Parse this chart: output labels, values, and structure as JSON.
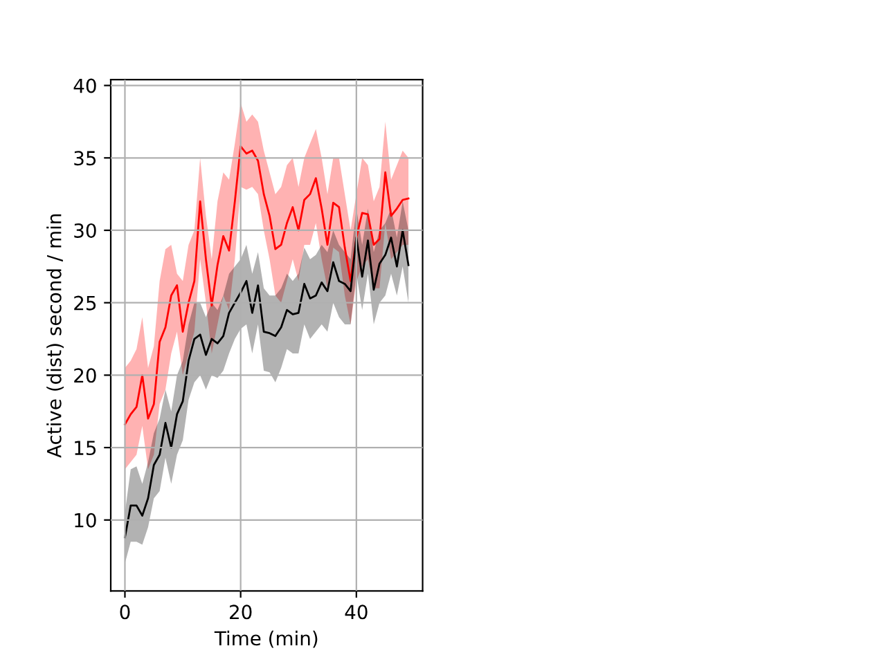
{
  "chart_data": {
    "type": "line",
    "xlabel": "Time (min)",
    "ylabel": "Active (dist) second / min",
    "x": [
      0,
      1,
      2,
      3,
      4,
      5,
      6,
      7,
      8,
      9,
      10,
      11,
      12,
      13,
      14,
      15,
      16,
      17,
      18,
      19,
      20,
      21,
      22,
      23,
      24,
      25,
      26,
      27,
      28,
      29,
      30,
      31,
      32,
      33,
      34,
      35,
      36,
      37,
      38,
      39,
      40,
      41,
      42,
      43,
      44,
      45,
      46,
      47,
      48,
      49
    ],
    "series": [
      {
        "color": "#ff0000",
        "values": [
          16.6,
          17.3,
          17.8,
          20.0,
          17.0,
          18.0,
          22.3,
          23.3,
          25.5,
          26.2,
          23.0,
          25.0,
          26.5,
          32.0,
          28.0,
          24.8,
          27.6,
          29.6,
          28.6,
          32.0,
          35.8,
          35.3,
          35.5,
          34.8,
          32.5,
          31.0,
          28.7,
          29.0,
          30.5,
          31.6,
          30.0,
          32.1,
          32.5,
          33.6,
          31.5,
          29.0,
          31.9,
          31.6,
          28.8,
          26.5,
          29.5,
          31.2,
          31.1,
          29.0,
          29.4,
          34.0,
          31.0,
          31.5,
          32.1,
          32.2
        ],
        "upper": [
          20.5,
          21,
          21.8,
          24,
          20.5,
          22,
          26.5,
          28.7,
          29,
          27,
          26.5,
          29,
          30,
          35,
          31,
          28,
          32,
          34,
          33.5,
          36,
          38.8,
          37.5,
          38,
          37.5,
          35.5,
          34,
          32.5,
          33,
          34.5,
          35,
          33,
          35,
          36,
          37,
          35,
          32.5,
          35,
          35,
          32.5,
          30,
          32.5,
          35,
          34.5,
          32,
          33,
          37.5,
          33.5,
          34.5,
          35.5,
          35
        ],
        "lower": [
          13.5,
          14,
          14.5,
          16.5,
          13.5,
          14.5,
          18,
          19,
          21.5,
          23,
          20,
          21.5,
          23,
          28,
          25,
          21.5,
          23.5,
          25.5,
          24.5,
          28,
          33,
          32.8,
          33,
          32.5,
          30,
          28,
          25.5,
          25,
          26.5,
          28,
          26.5,
          29,
          29,
          30.5,
          28,
          26,
          28.8,
          28.5,
          25.5,
          23.5,
          26.5,
          27.5,
          28,
          26,
          26,
          30.5,
          28,
          28.5,
          29,
          29
        ]
      },
      {
        "color": "#000000",
        "values": [
          8.8,
          11.0,
          11.0,
          10.3,
          11.5,
          13.8,
          14.5,
          16.7,
          15.0,
          17.3,
          18.2,
          21.0,
          22.5,
          22.8,
          21.4,
          22.5,
          22.2,
          22.7,
          24.3,
          25.0,
          25.7,
          26.5,
          24.3,
          26.2,
          23.0,
          22.9,
          22.7,
          23.3,
          24.5,
          24.2,
          24.3,
          26.3,
          25.3,
          25.5,
          26.4,
          25.8,
          27.8,
          26.5,
          26.3,
          25.8,
          29.5,
          26.8,
          29.3,
          25.9,
          27.7,
          28.3,
          29.5,
          27.5,
          30.0,
          27.6
        ],
        "upper": [
          10.5,
          13.5,
          13.7,
          12.5,
          14,
          16,
          17,
          19,
          17.5,
          20,
          21,
          23.5,
          25,
          25,
          24,
          25,
          24.5,
          25.5,
          27,
          27.5,
          28,
          29,
          27,
          28.5,
          26,
          25.5,
          25.5,
          26,
          27,
          26.5,
          27,
          28.8,
          28,
          28.3,
          29,
          28.5,
          30,
          29,
          28.5,
          28,
          31.5,
          29,
          31.5,
          28.5,
          30,
          30.5,
          31.5,
          29.5,
          32,
          30
        ],
        "lower": [
          7,
          8.5,
          8.5,
          8.3,
          9.5,
          11.5,
          12,
          14.3,
          12.5,
          14.5,
          15.5,
          18.3,
          19.5,
          20,
          19,
          20,
          19.8,
          20.3,
          21.5,
          22.5,
          23.2,
          23.5,
          21.5,
          23.5,
          20.3,
          20.2,
          19.5,
          20.5,
          21.8,
          21.5,
          21.5,
          23.5,
          22.5,
          23,
          23.5,
          23,
          25,
          24,
          23.5,
          23.5,
          27,
          24.5,
          27,
          23.5,
          25,
          25.5,
          27,
          25.5,
          27.5,
          25
        ]
      }
    ],
    "xlim": [
      -2.45,
      51.45
    ],
    "xticks": [
      0,
      20,
      40
    ],
    "ylim": [
      5.1,
      40.4
    ],
    "yticks": [
      10,
      15,
      20,
      25,
      30,
      35,
      40
    ],
    "grid": true
  }
}
